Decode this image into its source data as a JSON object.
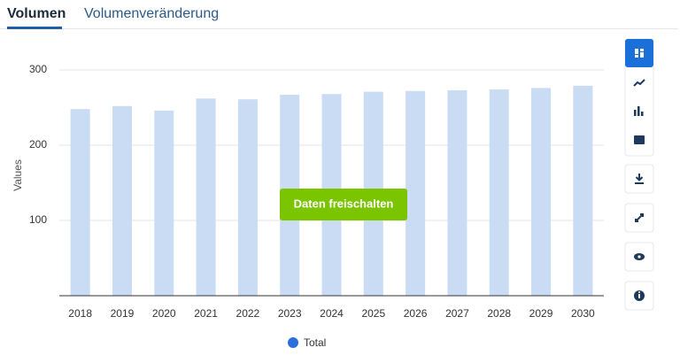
{
  "tabs": [
    "Volumen",
    "Volumenveränderung"
  ],
  "button": "Daten freischalten",
  "chart_data": {
    "type": "bar",
    "y_label": "Values",
    "categories": [
      "2018",
      "2019",
      "2020",
      "2021",
      "2022",
      "2023",
      "2024",
      "2025",
      "2026",
      "2027",
      "2028",
      "2029",
      "2030"
    ],
    "series": [
      {
        "name": "Total",
        "color": "#2a6fdb",
        "bar_color": "#c9dcf4",
        "values": [
          248,
          252,
          246,
          262,
          261,
          267,
          268,
          271,
          272,
          273,
          274,
          276,
          279
        ]
      }
    ],
    "ylim": [
      0,
      320
    ],
    "yticks": [
      100,
      200,
      300
    ],
    "grid": true
  }
}
